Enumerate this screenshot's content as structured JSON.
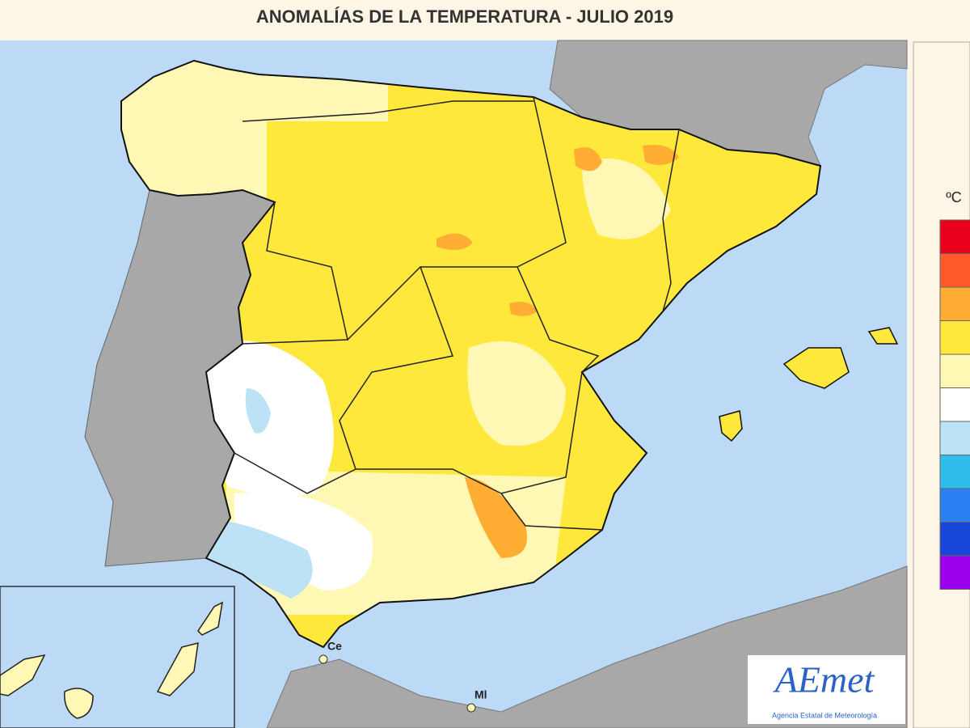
{
  "header": {
    "title": "ANOMALÍAS DE LA TEMPERATURA - JULIO 2019"
  },
  "legend": {
    "unit": "ºC",
    "colors": [
      "#e8001c",
      "#ff5a2a",
      "#ffad33",
      "#ffe83c",
      "#fff8b4",
      "#ffffff",
      "#bde2f6",
      "#2fbdee",
      "#2a80f0",
      "#1746d8",
      "#9a00ee"
    ]
  },
  "map": {
    "labels": [
      "Ce",
      "Ml"
    ]
  },
  "logo": {
    "name": "AEmet",
    "subtitle": "Agencia Estatal de Meteorología"
  }
}
